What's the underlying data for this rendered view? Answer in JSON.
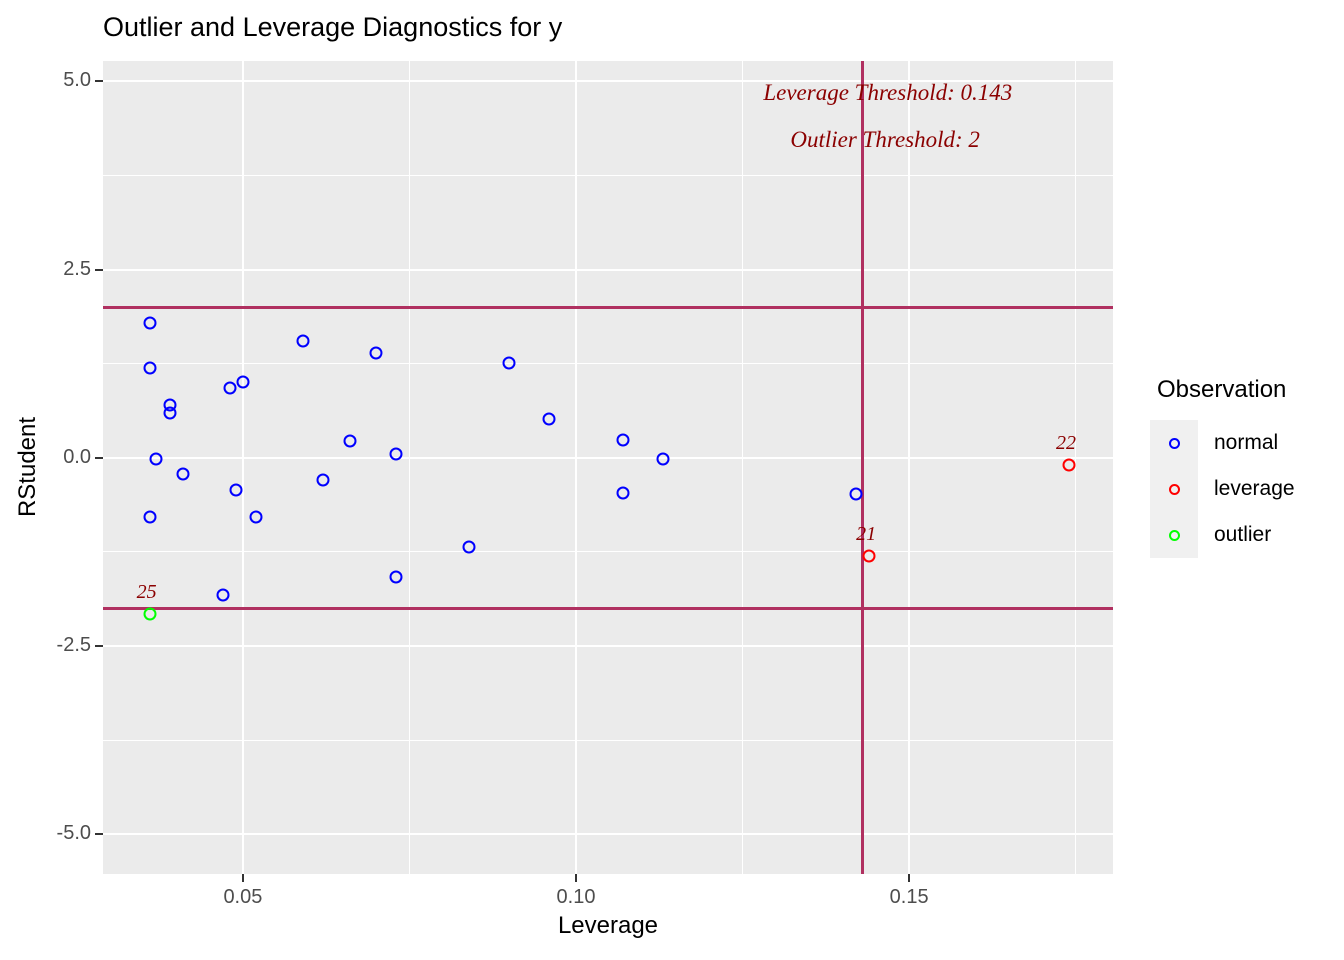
{
  "title": "Outlier and Leverage Diagnostics for y",
  "chart_data": {
    "type": "scatter",
    "title": "Outlier and Leverage Diagnostics for y",
    "xlabel": "Leverage",
    "ylabel": "RStudent",
    "xlim": [
      0.029,
      0.1806
    ],
    "ylim": [
      -5.53,
      5.27
    ],
    "grid": true,
    "legend_position": "right",
    "x_ticks": {
      "values": [
        0.05,
        0.1,
        0.15
      ],
      "labels": [
        "0.05",
        "0.10",
        "0.15"
      ],
      "minor": [
        0.075,
        0.125,
        0.175
      ]
    },
    "y_ticks": {
      "values": [
        5.0,
        2.5,
        0.0,
        -2.5,
        -5.0
      ],
      "labels": [
        "5.0",
        "2.5",
        "0.0",
        "-2.5",
        "-5.0"
      ],
      "minor": [
        3.75,
        1.25,
        -1.25,
        -3.75
      ]
    },
    "thresholds": {
      "leverage_x": 0.143,
      "outlier_y_upper": 2,
      "outlier_y_lower": -2,
      "line_color": "#B03060"
    },
    "annotations": [
      {
        "text": "Leverage Threshold: 0.143",
        "x": 0.1468,
        "y": 4.85,
        "color": "#8B0000"
      },
      {
        "text": "Outlier Threshold: 2",
        "x": 0.1464,
        "y": 4.22,
        "color": "#8B0000"
      }
    ],
    "series": [
      {
        "name": "normal",
        "color": "#0000FF",
        "points": [
          {
            "x": 0.036,
            "y": 1.79
          },
          {
            "x": 0.059,
            "y": 1.55
          },
          {
            "x": 0.07,
            "y": 1.39
          },
          {
            "x": 0.036,
            "y": 1.19
          },
          {
            "x": 0.048,
            "y": 0.92
          },
          {
            "x": 0.05,
            "y": 1.0
          },
          {
            "x": 0.039,
            "y": 0.7
          },
          {
            "x": 0.039,
            "y": 0.59
          },
          {
            "x": 0.066,
            "y": 0.22
          },
          {
            "x": 0.073,
            "y": 0.05
          },
          {
            "x": 0.037,
            "y": -0.02
          },
          {
            "x": 0.041,
            "y": -0.22
          },
          {
            "x": 0.062,
            "y": -0.3
          },
          {
            "x": 0.049,
            "y": -0.43
          },
          {
            "x": 0.052,
            "y": -0.79
          },
          {
            "x": 0.036,
            "y": -0.79
          },
          {
            "x": 0.073,
            "y": -1.59
          },
          {
            "x": 0.047,
            "y": -1.83
          },
          {
            "x": 0.09,
            "y": 1.26
          },
          {
            "x": 0.096,
            "y": 0.52
          },
          {
            "x": 0.107,
            "y": 0.23
          },
          {
            "x": 0.113,
            "y": -0.02
          },
          {
            "x": 0.107,
            "y": -0.47
          },
          {
            "x": 0.084,
            "y": -1.19
          },
          {
            "x": 0.142,
            "y": -0.48
          }
        ]
      },
      {
        "name": "leverage",
        "color": "#FF0000",
        "points": [
          {
            "x": 0.144,
            "y": -1.31,
            "label": "21"
          },
          {
            "x": 0.174,
            "y": -0.1,
            "label": "22"
          }
        ]
      },
      {
        "name": "outlier",
        "color": "#00FF00",
        "points": [
          {
            "x": 0.036,
            "y": -2.08,
            "label": "25"
          }
        ]
      }
    ]
  },
  "legend": {
    "title": "Observation",
    "items": [
      {
        "label": "normal",
        "color": "#0000FF"
      },
      {
        "label": "leverage",
        "color": "#FF0000"
      },
      {
        "label": "outlier",
        "color": "#00FF00"
      }
    ]
  },
  "colors": {
    "panel_background": "#EBEBEB",
    "gridline": "#FFFFFF",
    "threshold_line": "#B03060",
    "annotation_text": "#8B0000",
    "tick_label": "#4D4D4D"
  }
}
